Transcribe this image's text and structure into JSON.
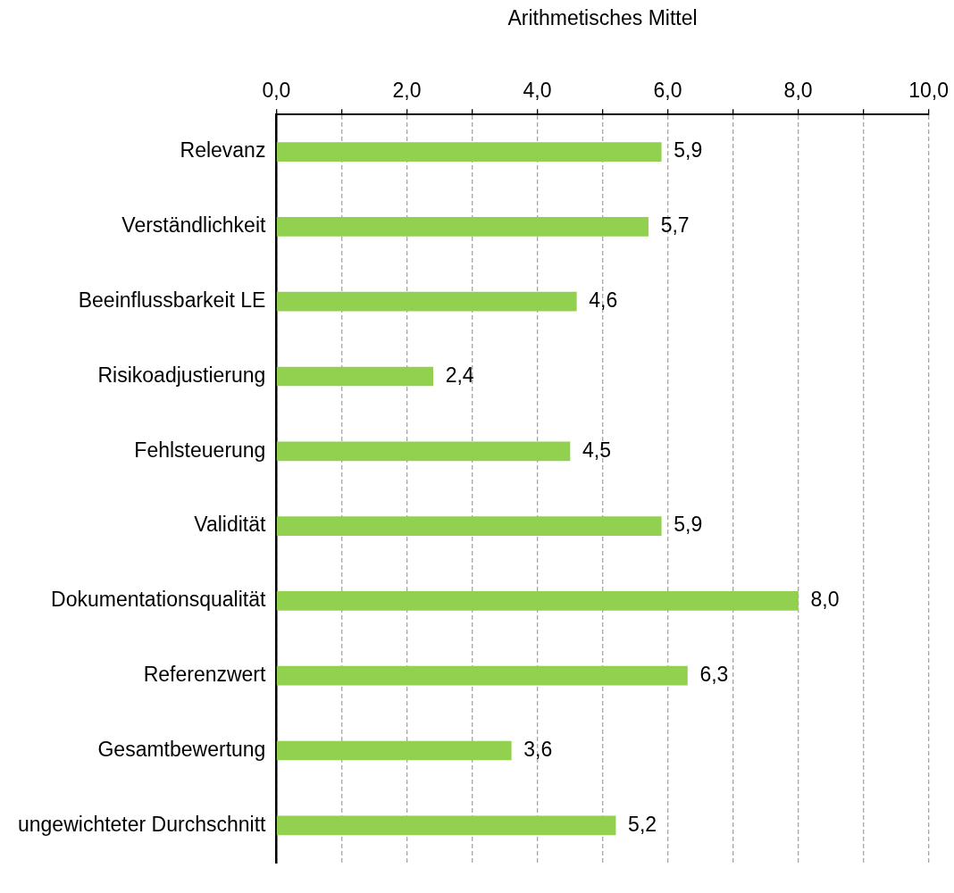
{
  "chart_data": {
    "type": "bar",
    "orientation": "horizontal",
    "xlabel": "Arithmetisches Mittel",
    "categories": [
      "Relevanz",
      "Verständlichkeit",
      "Beeinflussbarkeit LE",
      "Risikoadjustierung",
      "Fehlsteuerung",
      "Validität",
      "Dokumentationsqualität",
      "Referenzwert",
      "Gesamtbewertung",
      "ungewichteter Durchschnitt"
    ],
    "values": [
      5.9,
      5.7,
      4.6,
      2.4,
      4.5,
      5.9,
      8.0,
      6.3,
      3.6,
      5.2
    ],
    "value_labels": [
      "5,9",
      "5,7",
      "4,6",
      "2,4",
      "4,5",
      "5,9",
      "8,0",
      "6,3",
      "3,6",
      "5,2"
    ],
    "color": "#92d050",
    "xlim": [
      0,
      10
    ],
    "xticks": [
      {
        "value": 0,
        "label": "0,0"
      },
      {
        "value": 1,
        "label": null
      },
      {
        "value": 2,
        "label": "2,0"
      },
      {
        "value": 3,
        "label": null
      },
      {
        "value": 4,
        "label": "4,0"
      },
      {
        "value": 5,
        "label": null
      },
      {
        "value": 6,
        "label": "6,0"
      },
      {
        "value": 7,
        "label": null
      },
      {
        "value": 8,
        "label": "8,0"
      },
      {
        "value": 9,
        "label": null
      },
      {
        "value": 10,
        "label": "10,0"
      }
    ],
    "grid": "x",
    "legend": false
  }
}
